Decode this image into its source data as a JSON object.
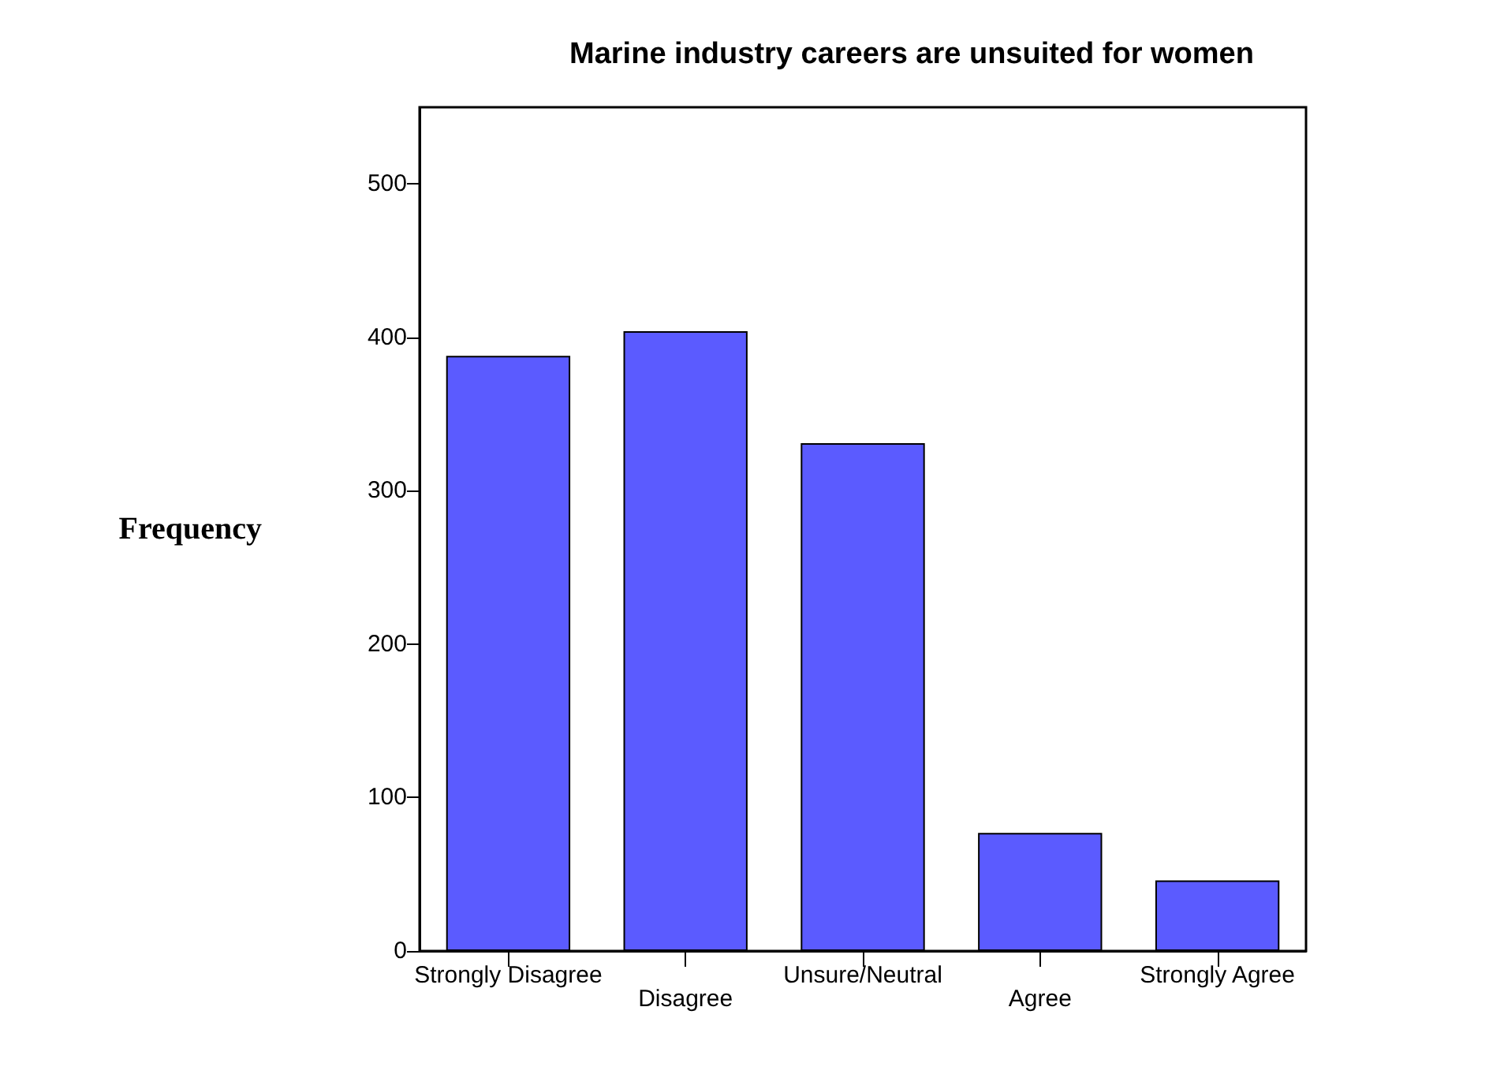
{
  "chart_data": {
    "type": "bar",
    "title": "Marine industry careers are unsuited for women",
    "ylabel": "Frequency",
    "categories": [
      "Strongly Disagree",
      "Disagree",
      "Unsure/Neutral",
      "Agree",
      "Strongly Agree"
    ],
    "values": [
      388,
      404,
      331,
      77,
      46
    ],
    "color": "#5b5bff",
    "ylim": [
      0,
      550
    ],
    "yticks": [
      0,
      100,
      200,
      300,
      400,
      500
    ],
    "grid": false
  }
}
